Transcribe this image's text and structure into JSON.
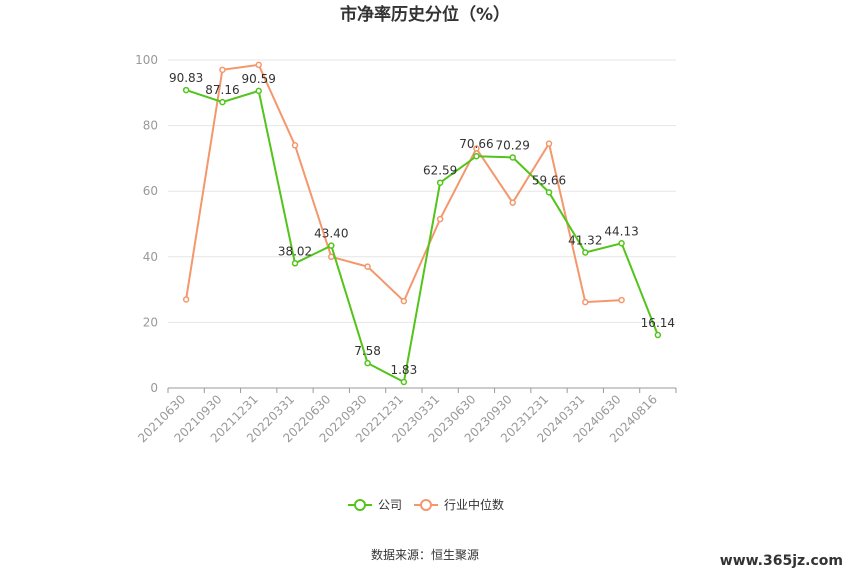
{
  "title": "市净率历史分位（%）",
  "source": "数据来源：恒生聚源",
  "watermark": "www.365jz.com",
  "colors": {
    "company": "#52c41a",
    "industry": "#f4976c",
    "grid": "#e6e6e6",
    "axis": "#999999"
  },
  "chart_data": {
    "type": "line",
    "categories": [
      "20210630",
      "20210930",
      "20211231",
      "20220331",
      "20220630",
      "20220930",
      "20221231",
      "20230331",
      "20230630",
      "20230930",
      "20231231",
      "20240331",
      "20240630",
      "20240816"
    ],
    "ylim": [
      0,
      100
    ],
    "yticks": [
      0,
      20,
      40,
      60,
      80,
      100
    ],
    "grid": true,
    "legend_position": "bottom",
    "series": [
      {
        "name": "公司",
        "color": "#52c41a",
        "values": [
          90.83,
          87.16,
          90.59,
          38.02,
          43.4,
          7.58,
          1.83,
          62.59,
          70.66,
          70.29,
          59.66,
          41.32,
          44.13,
          16.14
        ],
        "labels": [
          "90.83",
          "87.16",
          "90.59",
          "38.02",
          "43.40",
          "7.58",
          "1.83",
          "62.59",
          "70.66",
          "70.29",
          "59.66",
          "41.32",
          "44.13",
          "16.14"
        ]
      },
      {
        "name": "行业中位数",
        "color": "#f4976c",
        "values": [
          27,
          97,
          98.5,
          74,
          40,
          37,
          26.5,
          51.5,
          73,
          56.5,
          74.5,
          26.2,
          26.8,
          null
        ]
      }
    ]
  }
}
